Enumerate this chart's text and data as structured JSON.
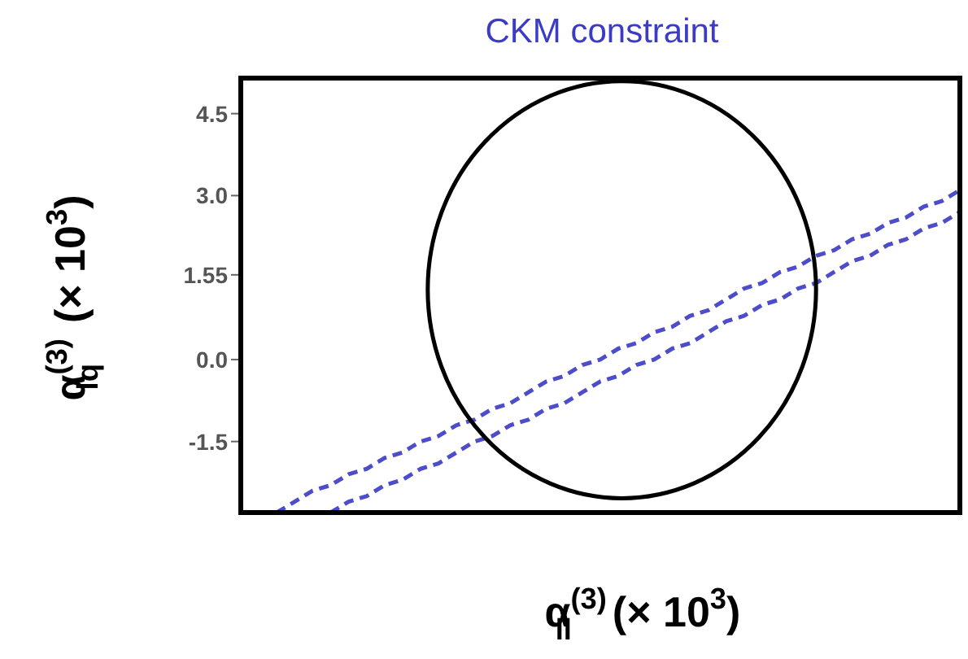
{
  "chart_data": {
    "type": "line",
    "title": "CKM constraint",
    "xlabel": "α$^{(3)}$$_{ll}$  (× 10$^{3}$)",
    "ylabel": "α$^{(3)}$$_{lq}$  (× 10$^{3}$)",
    "categories": [
      null,
      null,
      null,
      null,
      null,
      null,
      null,
      null,
      null,
      null,
      null,
      null,
      null,
      null,
      null,
      null,
      null,
      null,
      null,
      null,
      null,
      null,
      null,
      null,
      null,
      null,
      null,
      null,
      null,
      null,
      null,
      null,
      null,
      null,
      null,
      null,
      null,
      null,
      null,
      null,
      null
    ],
    "ylim": [
      -2.8,
      5.15
    ],
    "yticks": [
      4.5,
      {
        "value": 3,
        "label": "3.0"
      },
      1.55,
      {
        "value": 0,
        "label": "0.0"
      },
      -1.5
    ],
    "tick_labels": "y",
    "marker": "none",
    "series": [
      {
        "color": "#4d4dcc",
        "line_style": "dashed",
        "values": [
          null,
          null,
          -2.8,
          -2.6,
          -2.4,
          -2.3,
          -2.1,
          -2.0,
          -1.8,
          -1.7,
          -1.5,
          -1.4,
          -1.2,
          -1.1,
          -0.9,
          -0.8,
          -0.6,
          -0.4,
          -0.3,
          -0.1,
          0.0,
          0.2,
          0.3,
          0.5,
          0.6,
          0.8,
          0.9,
          1.1,
          1.3,
          1.4,
          1.6,
          1.7,
          1.9,
          2.0,
          2.2,
          2.3,
          2.5,
          2.6,
          2.8,
          2.9,
          3.1
        ]
      },
      {
        "color": "#4d4dcc",
        "line_style": "dashed",
        "values": [
          null,
          null,
          null,
          null,
          null,
          -2.8,
          -2.6,
          -2.5,
          -2.3,
          -2.2,
          -2.0,
          -1.9,
          -1.7,
          -1.5,
          -1.4,
          -1.2,
          -1.1,
          -0.9,
          -0.8,
          -0.6,
          -0.4,
          -0.3,
          -0.1,
          0.0,
          0.2,
          0.3,
          0.5,
          0.7,
          0.8,
          1.0,
          1.1,
          1.3,
          1.4,
          1.6,
          1.8,
          1.9,
          2.1,
          2.2,
          2.4,
          2.5,
          2.7
        ]
      }
    ]
  }
}
